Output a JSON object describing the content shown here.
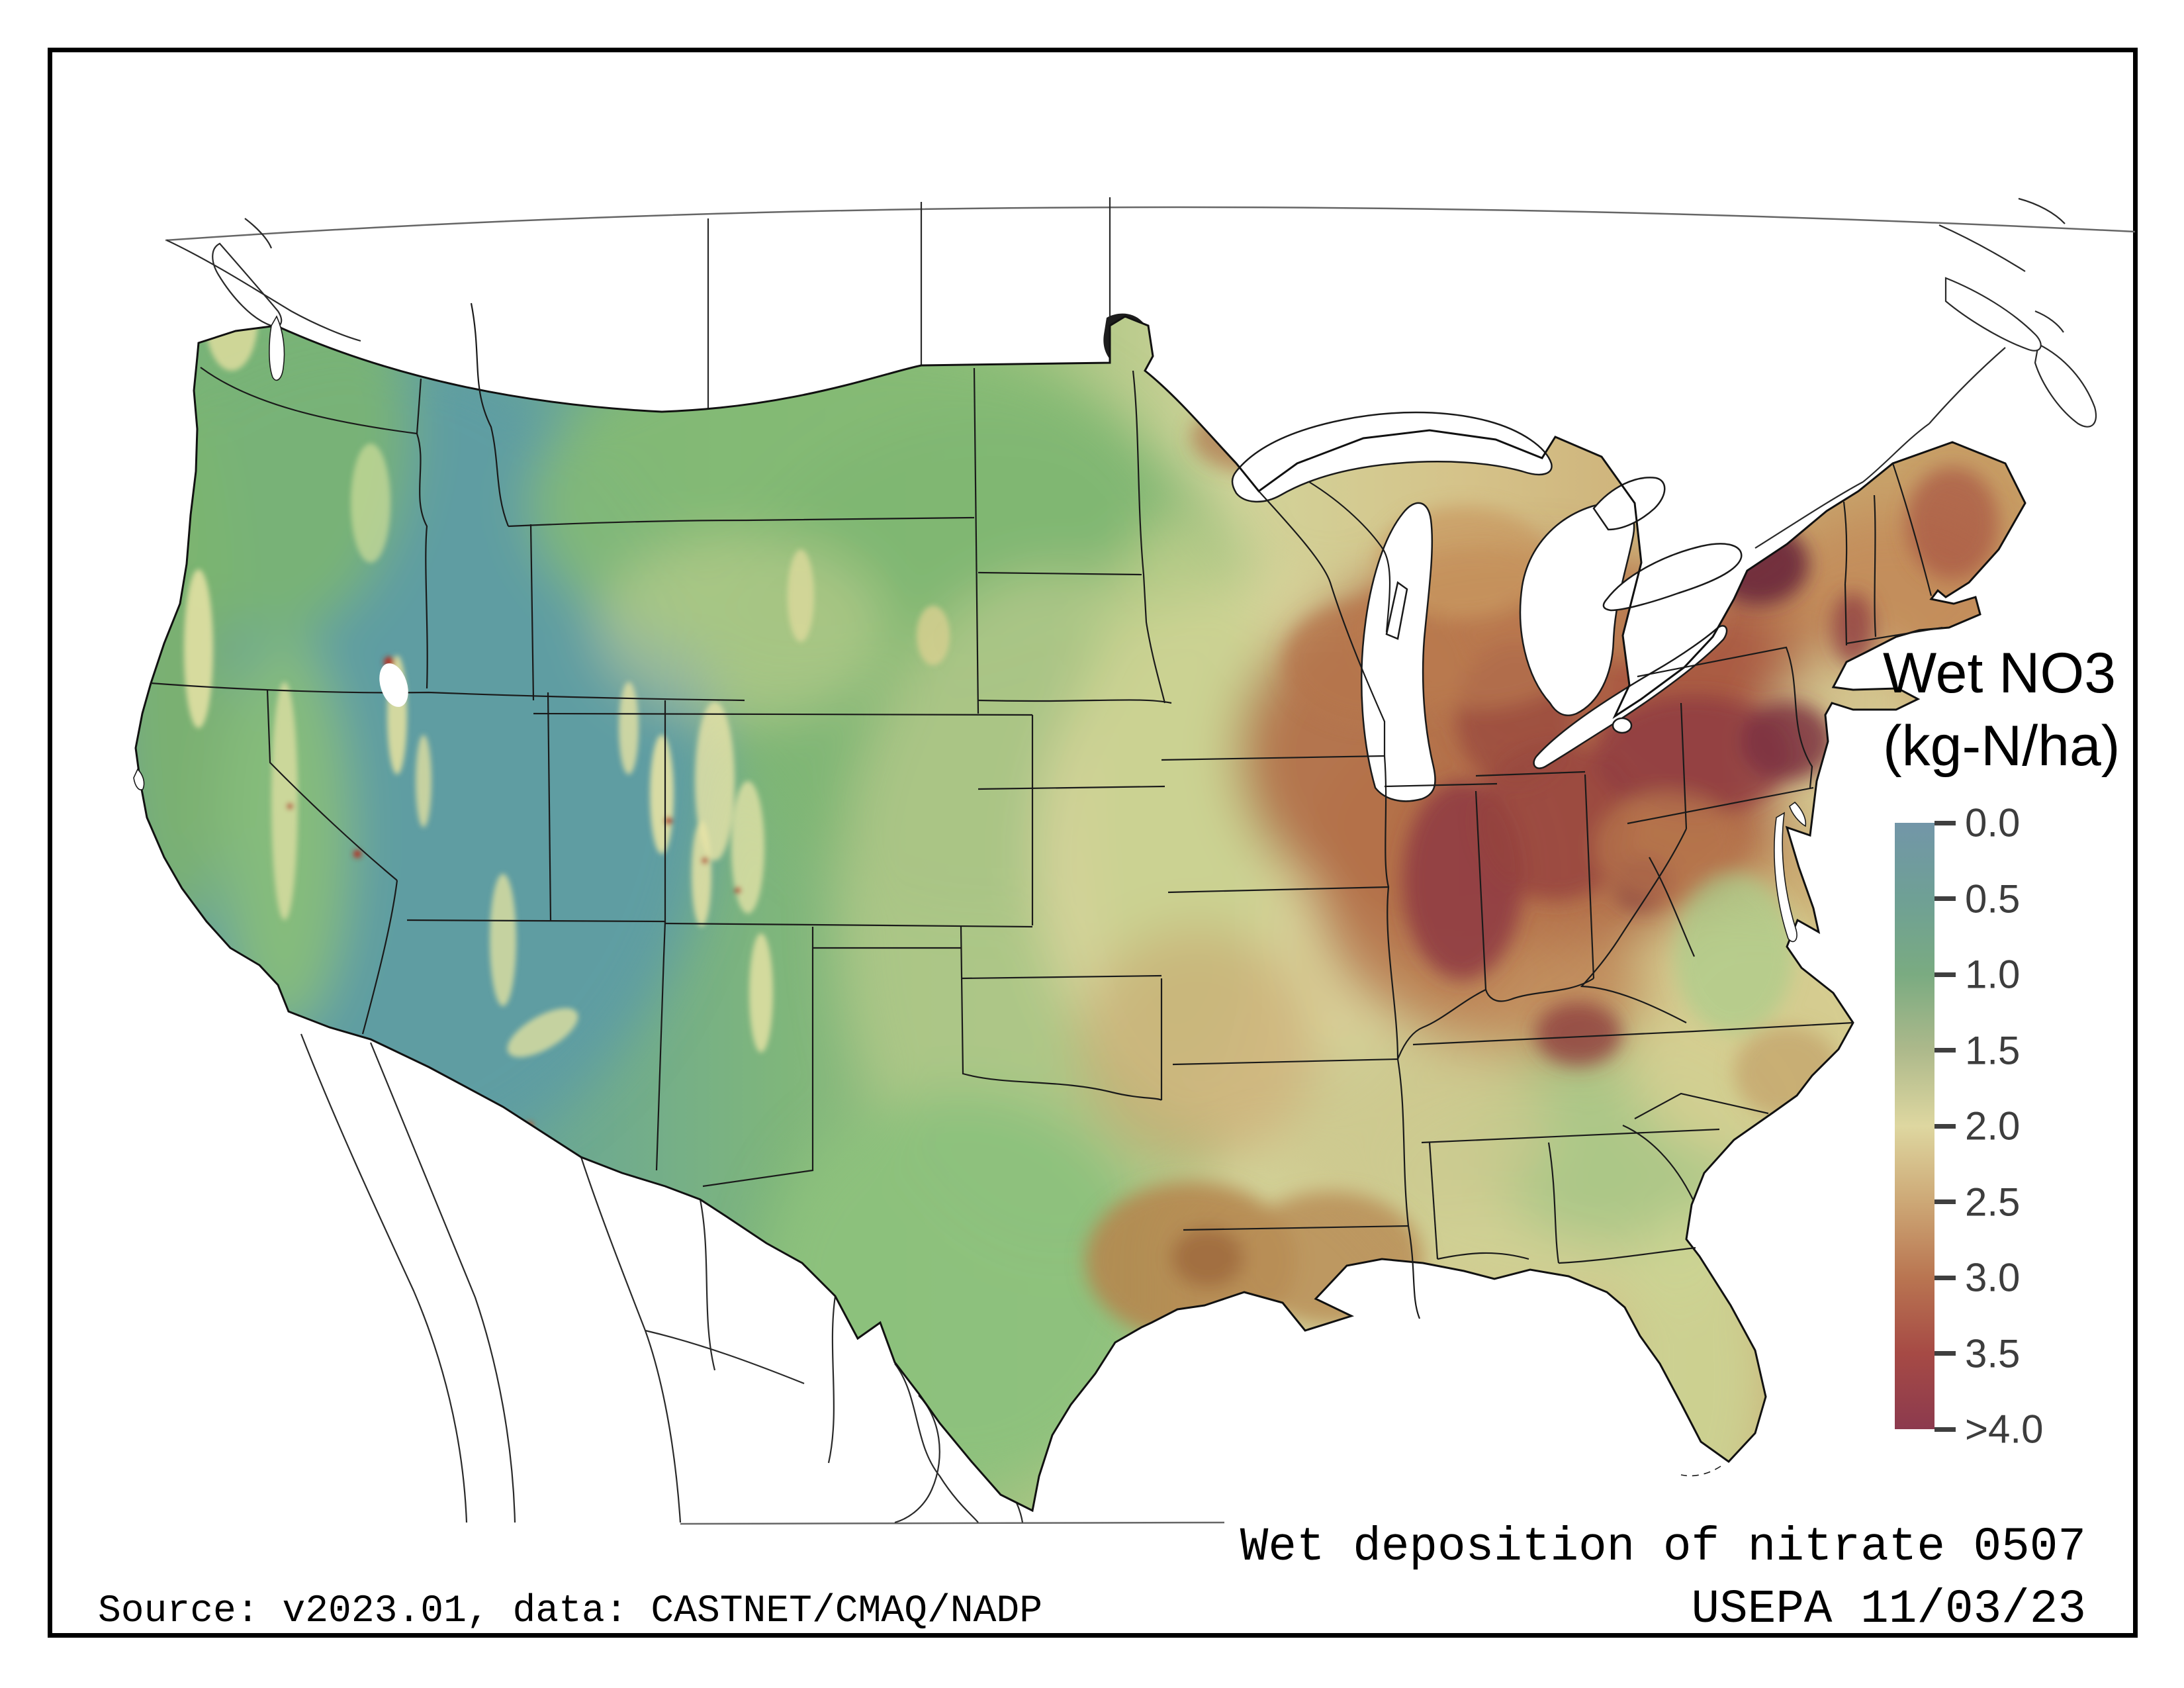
{
  "figure": {
    "legend": {
      "title_line1": "Wet NO3",
      "title_line2": "(kg-N/ha)",
      "ticks": [
        "0.0",
        "0.5",
        "1.0",
        "1.5",
        "2.0",
        "2.5",
        "3.0",
        "3.5",
        ">4.0"
      ]
    },
    "caption": {
      "title": "Wet deposition of nitrate 0507",
      "source": "Source: v2023.01, data: CASTNET/CMAQ/NADP",
      "agency_date": "USEPA 11/03/23"
    }
  },
  "chart_data": {
    "type": "heatmap",
    "subtype": "geographic-gridded-deposition-map",
    "region": "Continental United States (CONUS), Lambert conformal projection, with Canada and Mexico outlined in white",
    "title": "Wet deposition of nitrate 0507",
    "variable": "Wet NO3",
    "units": "kg-N/ha",
    "legend_position": "right",
    "colorbar": {
      "orientation": "vertical",
      "range": [
        0.0,
        4.0
      ],
      "tick_values": [
        0.0,
        0.5,
        1.0,
        1.5,
        2.0,
        2.5,
        3.0,
        3.5,
        4.0
      ],
      "tick_labels": [
        "0.0",
        "0.5",
        "1.0",
        "1.5",
        "2.0",
        "2.5",
        "3.0",
        "3.5",
        ">4.0"
      ],
      "stops": [
        {
          "value": 0.0,
          "color": "#7296a8"
        },
        {
          "value": 0.5,
          "color": "#6fa095"
        },
        {
          "value": 1.0,
          "color": "#7aab81"
        },
        {
          "value": 1.5,
          "color": "#adb98b"
        },
        {
          "value": 2.0,
          "color": "#ded7a0"
        },
        {
          "value": 2.5,
          "color": "#cda876"
        },
        {
          "value": 3.0,
          "color": "#b97551"
        },
        {
          "value": 3.5,
          "color": "#a64a45"
        },
        {
          "value": 4.0,
          "color": "#8c3a4e"
        }
      ]
    },
    "high_value_regions": [
      {
        "name": "Indiana / Ohio / western Pennsylvania (Ohio Valley)",
        "approx_value": "3.0 - >4.0"
      },
      {
        "name": "Adirondacks, upstate New York",
        "approx_value": ">4.0"
      },
      {
        "name": "Lower Michigan",
        "approx_value": "2.5 - 3.5"
      },
      {
        "name": "East Texas / Louisiana",
        "approx_value": "2.5 - 3.0"
      },
      {
        "name": "Great Smoky Mountains (TN/NC)",
        "approx_value": "3.0 - 3.5"
      }
    ],
    "low_value_regions": [
      {
        "name": "Great Basin / Nevada / interior West",
        "approx_value": "0.0 - 0.5"
      },
      {
        "name": "Pacific Northwest interior and California deserts",
        "approx_value": "0.5 - 1.0"
      },
      {
        "name": "Central and south Texas, Georgia",
        "approx_value": "1.0 - 1.5"
      }
    ],
    "water_bodies_shown_blank": [
      "Great Lakes",
      "oceans",
      "Chesapeake Bay"
    ]
  }
}
